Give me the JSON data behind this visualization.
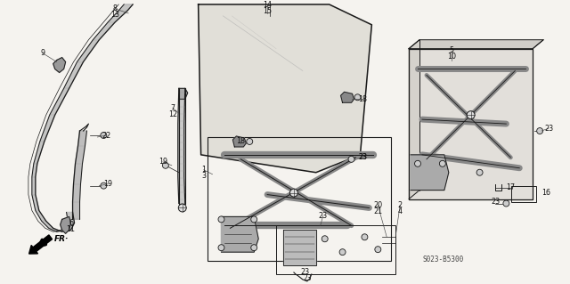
{
  "bg_color": "#f5f3ef",
  "line_color": "#1a1a1a",
  "diagram_code": "S023-B5300",
  "labels": [
    [
      "8",
      127,
      13,
      "center"
    ],
    [
      "13",
      127,
      20,
      "center"
    ],
    [
      "9",
      48,
      62,
      "center"
    ],
    [
      "22",
      112,
      155,
      "center"
    ],
    [
      "19",
      112,
      210,
      "center"
    ],
    [
      "6",
      82,
      255,
      "center"
    ],
    [
      "11",
      82,
      265,
      "center"
    ],
    [
      "7",
      196,
      125,
      "right"
    ],
    [
      "12",
      196,
      132,
      "right"
    ],
    [
      "19",
      185,
      185,
      "center"
    ],
    [
      "14",
      302,
      8,
      "center"
    ],
    [
      "15",
      302,
      15,
      "center"
    ],
    [
      "18",
      380,
      113,
      "left"
    ],
    [
      "18",
      273,
      163,
      "left"
    ],
    [
      "1",
      234,
      195,
      "right"
    ],
    [
      "3",
      234,
      202,
      "right"
    ],
    [
      "23",
      388,
      180,
      "left"
    ],
    [
      "2",
      444,
      234,
      "left"
    ],
    [
      "4",
      444,
      241,
      "left"
    ],
    [
      "20",
      432,
      234,
      "right"
    ],
    [
      "21",
      432,
      241,
      "right"
    ],
    [
      "23",
      373,
      247,
      "center"
    ],
    [
      "23",
      347,
      303,
      "center"
    ],
    [
      "5",
      511,
      60,
      "center"
    ],
    [
      "10",
      511,
      67,
      "center"
    ],
    [
      "23",
      596,
      148,
      "left"
    ],
    [
      "23",
      560,
      228,
      "center"
    ],
    [
      "17",
      565,
      215,
      "left"
    ],
    [
      "16",
      610,
      220,
      "left"
    ]
  ]
}
